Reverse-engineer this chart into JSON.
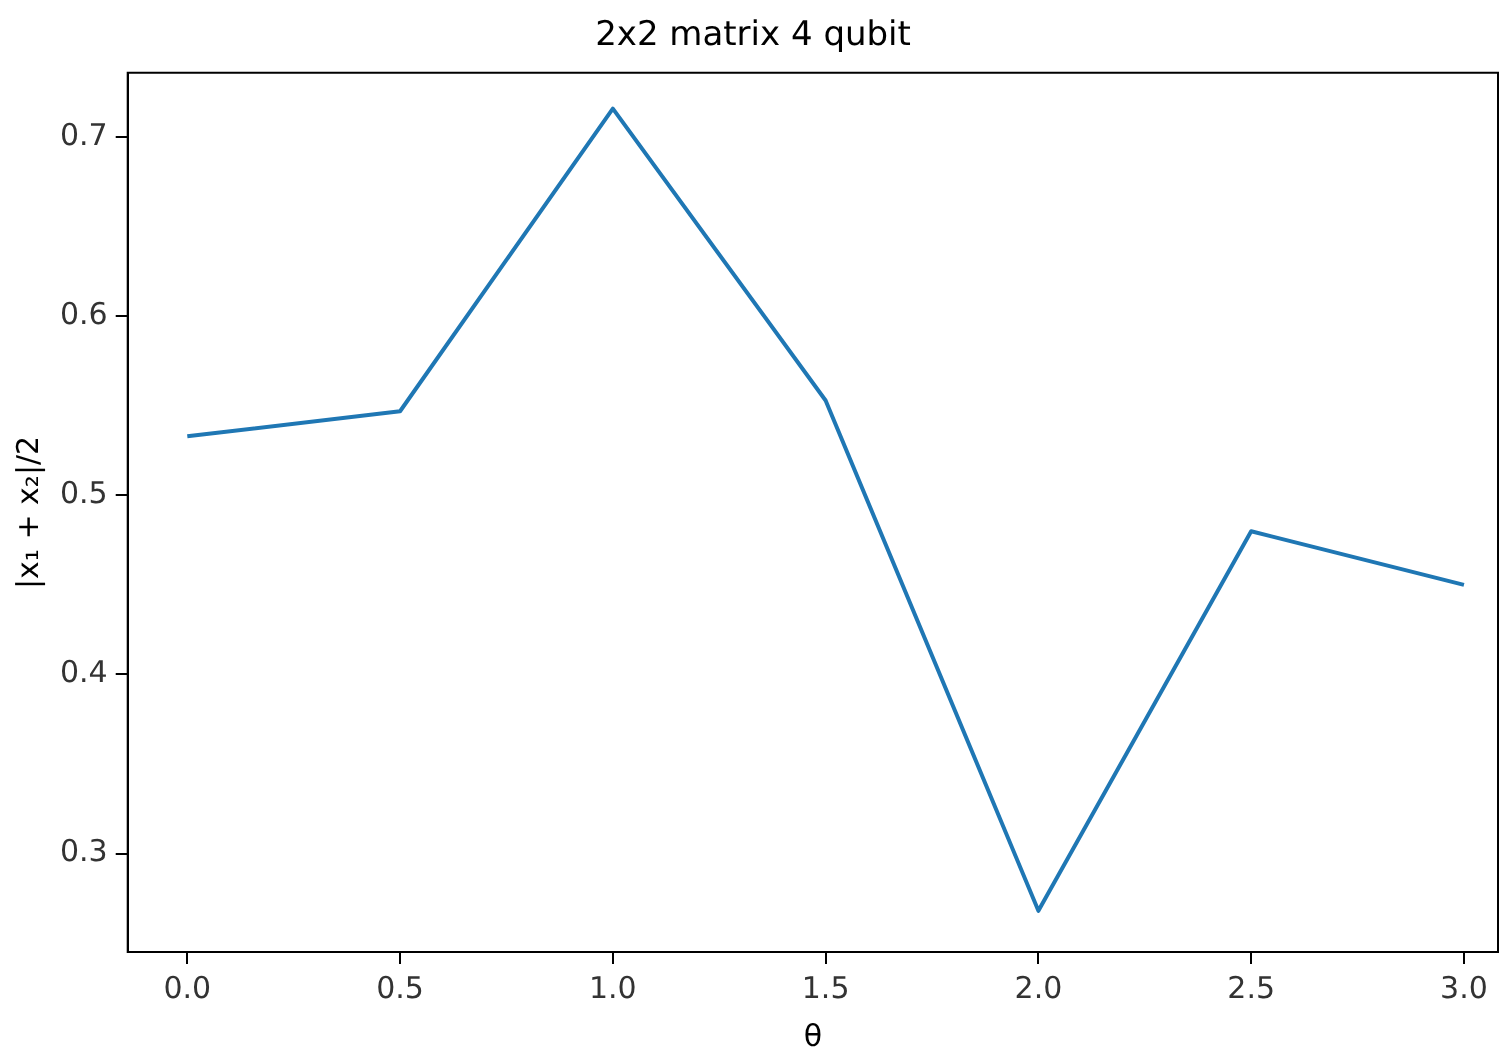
{
  "chart_data": {
    "type": "line",
    "title": "2x2 matrix 4 qubit",
    "xlabel": "θ",
    "ylabel": "|x₁ + x₂|/2",
    "x": [
      0,
      0.5,
      1,
      1.5,
      2,
      2.5,
      3
    ],
    "series": [
      {
        "color": "#1f77b4",
        "values": [
          0.533,
          0.547,
          0.716,
          0.553,
          0.268,
          0.48,
          0.45
        ]
      }
    ],
    "xlim": [
      -0.14,
      3.08
    ],
    "ylim": [
      0.245,
      0.736
    ],
    "xticks": [
      {
        "value": 0,
        "label": "0.0"
      },
      {
        "value": 0.5,
        "label": "0.5"
      },
      {
        "value": 1,
        "label": "1.0"
      },
      {
        "value": 1.5,
        "label": "1.5"
      },
      {
        "value": 2,
        "label": "2.0"
      },
      {
        "value": 2.5,
        "label": "2.5"
      },
      {
        "value": 3,
        "label": "3.0"
      }
    ],
    "yticks": [
      0.3,
      0.4,
      0.5,
      0.6,
      0.7
    ],
    "grid": false,
    "legend": false,
    "marker": "none",
    "line_style": "solid"
  }
}
